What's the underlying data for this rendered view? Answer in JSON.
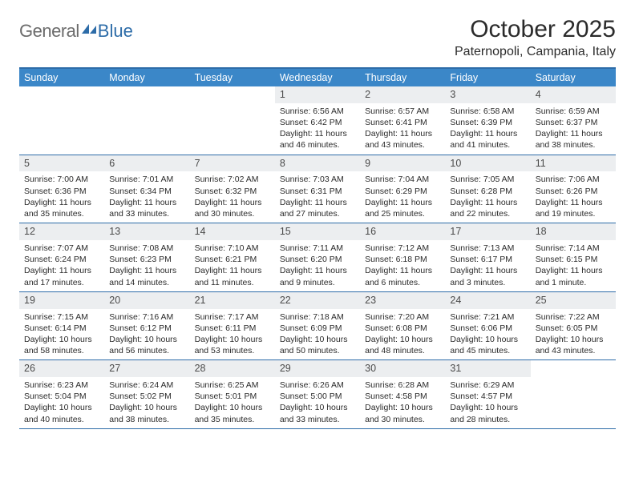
{
  "brand": {
    "part1": "General",
    "part2": "Blue"
  },
  "title": "October 2025",
  "location": "Paternopoli, Campania, Italy",
  "colors": {
    "accent": "#3b87c8",
    "border": "#2d6ca8",
    "daynum_bg": "#eceef0",
    "text": "#2b2b2b",
    "logo_gray": "#6b6b6b"
  },
  "weekdays": [
    "Sunday",
    "Monday",
    "Tuesday",
    "Wednesday",
    "Thursday",
    "Friday",
    "Saturday"
  ],
  "weeks": [
    [
      {
        "n": "",
        "lines": []
      },
      {
        "n": "",
        "lines": []
      },
      {
        "n": "",
        "lines": []
      },
      {
        "n": "1",
        "lines": [
          "Sunrise: 6:56 AM",
          "Sunset: 6:42 PM",
          "Daylight: 11 hours and 46 minutes."
        ]
      },
      {
        "n": "2",
        "lines": [
          "Sunrise: 6:57 AM",
          "Sunset: 6:41 PM",
          "Daylight: 11 hours and 43 minutes."
        ]
      },
      {
        "n": "3",
        "lines": [
          "Sunrise: 6:58 AM",
          "Sunset: 6:39 PM",
          "Daylight: 11 hours and 41 minutes."
        ]
      },
      {
        "n": "4",
        "lines": [
          "Sunrise: 6:59 AM",
          "Sunset: 6:37 PM",
          "Daylight: 11 hours and 38 minutes."
        ]
      }
    ],
    [
      {
        "n": "5",
        "lines": [
          "Sunrise: 7:00 AM",
          "Sunset: 6:36 PM",
          "Daylight: 11 hours and 35 minutes."
        ]
      },
      {
        "n": "6",
        "lines": [
          "Sunrise: 7:01 AM",
          "Sunset: 6:34 PM",
          "Daylight: 11 hours and 33 minutes."
        ]
      },
      {
        "n": "7",
        "lines": [
          "Sunrise: 7:02 AM",
          "Sunset: 6:32 PM",
          "Daylight: 11 hours and 30 minutes."
        ]
      },
      {
        "n": "8",
        "lines": [
          "Sunrise: 7:03 AM",
          "Sunset: 6:31 PM",
          "Daylight: 11 hours and 27 minutes."
        ]
      },
      {
        "n": "9",
        "lines": [
          "Sunrise: 7:04 AM",
          "Sunset: 6:29 PM",
          "Daylight: 11 hours and 25 minutes."
        ]
      },
      {
        "n": "10",
        "lines": [
          "Sunrise: 7:05 AM",
          "Sunset: 6:28 PM",
          "Daylight: 11 hours and 22 minutes."
        ]
      },
      {
        "n": "11",
        "lines": [
          "Sunrise: 7:06 AM",
          "Sunset: 6:26 PM",
          "Daylight: 11 hours and 19 minutes."
        ]
      }
    ],
    [
      {
        "n": "12",
        "lines": [
          "Sunrise: 7:07 AM",
          "Sunset: 6:24 PM",
          "Daylight: 11 hours and 17 minutes."
        ]
      },
      {
        "n": "13",
        "lines": [
          "Sunrise: 7:08 AM",
          "Sunset: 6:23 PM",
          "Daylight: 11 hours and 14 minutes."
        ]
      },
      {
        "n": "14",
        "lines": [
          "Sunrise: 7:10 AM",
          "Sunset: 6:21 PM",
          "Daylight: 11 hours and 11 minutes."
        ]
      },
      {
        "n": "15",
        "lines": [
          "Sunrise: 7:11 AM",
          "Sunset: 6:20 PM",
          "Daylight: 11 hours and 9 minutes."
        ]
      },
      {
        "n": "16",
        "lines": [
          "Sunrise: 7:12 AM",
          "Sunset: 6:18 PM",
          "Daylight: 11 hours and 6 minutes."
        ]
      },
      {
        "n": "17",
        "lines": [
          "Sunrise: 7:13 AM",
          "Sunset: 6:17 PM",
          "Daylight: 11 hours and 3 minutes."
        ]
      },
      {
        "n": "18",
        "lines": [
          "Sunrise: 7:14 AM",
          "Sunset: 6:15 PM",
          "Daylight: 11 hours and 1 minute."
        ]
      }
    ],
    [
      {
        "n": "19",
        "lines": [
          "Sunrise: 7:15 AM",
          "Sunset: 6:14 PM",
          "Daylight: 10 hours and 58 minutes."
        ]
      },
      {
        "n": "20",
        "lines": [
          "Sunrise: 7:16 AM",
          "Sunset: 6:12 PM",
          "Daylight: 10 hours and 56 minutes."
        ]
      },
      {
        "n": "21",
        "lines": [
          "Sunrise: 7:17 AM",
          "Sunset: 6:11 PM",
          "Daylight: 10 hours and 53 minutes."
        ]
      },
      {
        "n": "22",
        "lines": [
          "Sunrise: 7:18 AM",
          "Sunset: 6:09 PM",
          "Daylight: 10 hours and 50 minutes."
        ]
      },
      {
        "n": "23",
        "lines": [
          "Sunrise: 7:20 AM",
          "Sunset: 6:08 PM",
          "Daylight: 10 hours and 48 minutes."
        ]
      },
      {
        "n": "24",
        "lines": [
          "Sunrise: 7:21 AM",
          "Sunset: 6:06 PM",
          "Daylight: 10 hours and 45 minutes."
        ]
      },
      {
        "n": "25",
        "lines": [
          "Sunrise: 7:22 AM",
          "Sunset: 6:05 PM",
          "Daylight: 10 hours and 43 minutes."
        ]
      }
    ],
    [
      {
        "n": "26",
        "lines": [
          "Sunrise: 6:23 AM",
          "Sunset: 5:04 PM",
          "Daylight: 10 hours and 40 minutes."
        ]
      },
      {
        "n": "27",
        "lines": [
          "Sunrise: 6:24 AM",
          "Sunset: 5:02 PM",
          "Daylight: 10 hours and 38 minutes."
        ]
      },
      {
        "n": "28",
        "lines": [
          "Sunrise: 6:25 AM",
          "Sunset: 5:01 PM",
          "Daylight: 10 hours and 35 minutes."
        ]
      },
      {
        "n": "29",
        "lines": [
          "Sunrise: 6:26 AM",
          "Sunset: 5:00 PM",
          "Daylight: 10 hours and 33 minutes."
        ]
      },
      {
        "n": "30",
        "lines": [
          "Sunrise: 6:28 AM",
          "Sunset: 4:58 PM",
          "Daylight: 10 hours and 30 minutes."
        ]
      },
      {
        "n": "31",
        "lines": [
          "Sunrise: 6:29 AM",
          "Sunset: 4:57 PM",
          "Daylight: 10 hours and 28 minutes."
        ]
      },
      {
        "n": "",
        "lines": []
      }
    ]
  ]
}
